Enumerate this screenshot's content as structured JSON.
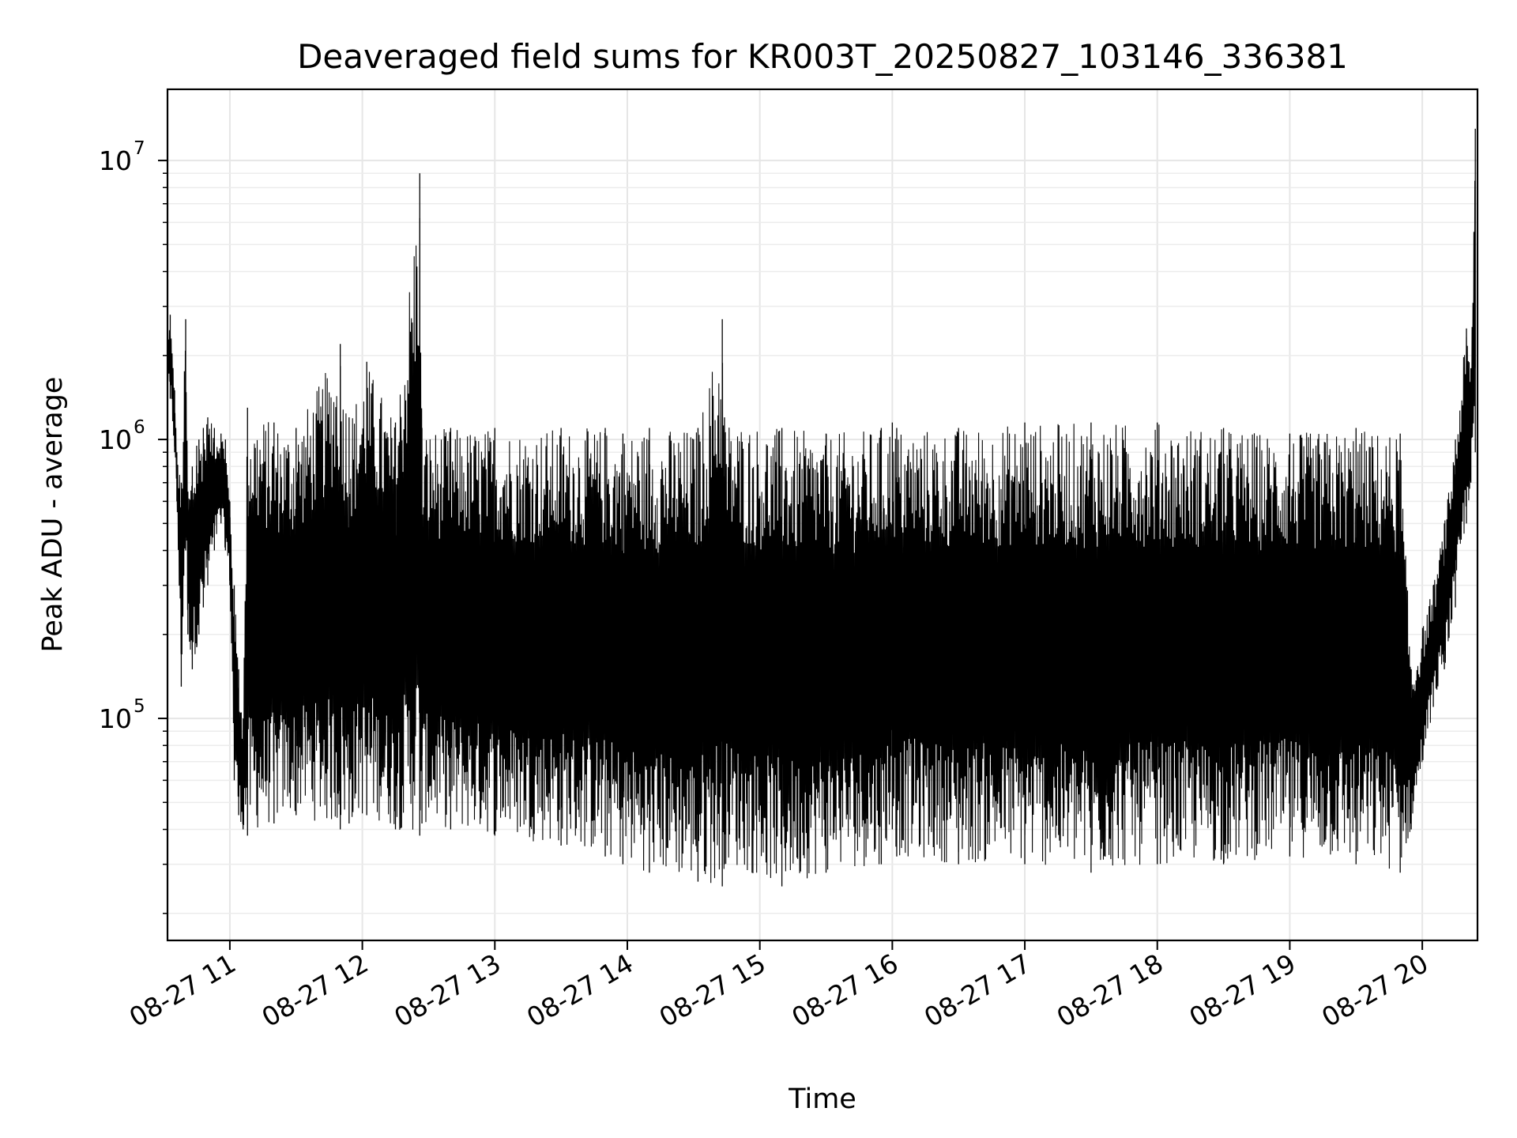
{
  "chart_data": {
    "type": "line",
    "title": "Deaveraged field sums for KR003T_20250827_103146_336381",
    "xlabel": "Time",
    "ylabel": "Peak ADU - average",
    "yscale": "log",
    "ylim": [
      16000,
      18000000
    ],
    "xlim": [
      "2025-08-27 10:31:46",
      "2025-08-27 20:25:00"
    ],
    "x_ticks": [
      "08-27 11",
      "08-27 12",
      "08-27 13",
      "08-27 14",
      "08-27 15",
      "08-27 16",
      "08-27 17",
      "08-27 18",
      "08-27 19",
      "08-27 20"
    ],
    "y_ticks": [
      {
        "base": "10",
        "exp": "5"
      },
      {
        "base": "10",
        "exp": "6"
      },
      {
        "base": "10",
        "exp": "7"
      }
    ],
    "grid": true,
    "line_color": "#000000",
    "series": [
      {
        "x": [
          "2025-08-27 10:31:46",
          "2025-08-27 10:33:00",
          "2025-08-27 10:35:00",
          "2025-08-27 10:36:00",
          "2025-08-27 10:38:00",
          "2025-08-27 10:40:00",
          "2025-08-27 10:41:00",
          "2025-08-27 10:43:00",
          "2025-08-27 10:45:00",
          "2025-08-27 10:46:00",
          "2025-08-27 10:48:00",
          "2025-08-27 10:50:00",
          "2025-08-27 10:53:00",
          "2025-08-27 10:56:00",
          "2025-08-27 10:58:00",
          "2025-08-27 11:00:00",
          "2025-08-27 11:02:00",
          "2025-08-27 11:04:00",
          "2025-08-27 11:06:00",
          "2025-08-27 11:08:00",
          "2025-08-27 11:20:00",
          "2025-08-27 11:30:00",
          "2025-08-27 11:50:00",
          "2025-08-27 11:54:00",
          "2025-08-27 12:02:00",
          "2025-08-27 12:15:00",
          "2025-08-27 12:26:00",
          "2025-08-27 12:27:00",
          "2025-08-27 12:40:00",
          "2025-08-27 13:00:00",
          "2025-08-27 13:30:00",
          "2025-08-27 13:50:00",
          "2025-08-27 13:58:00",
          "2025-08-27 14:10:00",
          "2025-08-27 14:32:00",
          "2025-08-27 14:43:00",
          "2025-08-27 14:44:00",
          "2025-08-27 15:10:00",
          "2025-08-27 15:30:00",
          "2025-08-27 15:55:00",
          "2025-08-27 16:00:00",
          "2025-08-27 16:02:00",
          "2025-08-27 16:30:00",
          "2025-08-27 17:00:00",
          "2025-08-27 17:30:00",
          "2025-08-27 18:00:00",
          "2025-08-27 18:30:00",
          "2025-08-27 19:00:00",
          "2025-08-27 19:30:00",
          "2025-08-27 19:50:00",
          "2025-08-27 19:55:00",
          "2025-08-27 20:05:00",
          "2025-08-27 20:10:00",
          "2025-08-27 20:15:00",
          "2025-08-27 20:20:00",
          "2025-08-27 20:22:00",
          "2025-08-27 20:24:00"
        ],
        "high": [
          2200000,
          2800000,
          1500000,
          900000,
          700000,
          2700000,
          650000,
          800000,
          950000,
          1000000,
          1100000,
          1200000,
          1100000,
          1050000,
          1000000,
          600000,
          300000,
          150000,
          100000,
          1300000,
          1150000,
          1100000,
          2200000,
          1200000,
          1900000,
          1150000,
          9000000,
          1100000,
          1100000,
          1100000,
          1100000,
          1100000,
          1050000,
          1100000,
          1100000,
          2700000,
          1200000,
          1100000,
          1050000,
          1100000,
          1150000,
          1100000,
          1100000,
          1150000,
          1150000,
          1150000,
          1100000,
          1050000,
          1100000,
          1050000,
          150000,
          300000,
          500000,
          1000000,
          2500000,
          1800000,
          13000000
        ],
        "low": [
          1600000,
          1400000,
          900000,
          600000,
          130000,
          400000,
          200000,
          150000,
          180000,
          200000,
          250000,
          300000,
          400000,
          500000,
          400000,
          300000,
          60000,
          45000,
          40000,
          38000,
          42000,
          45000,
          40000,
          42000,
          45000,
          40000,
          38000,
          42000,
          40000,
          38000,
          35000,
          32000,
          30000,
          28000,
          26000,
          25000,
          30000,
          25000,
          28000,
          30000,
          40000,
          32000,
          30000,
          30000,
          28000,
          30000,
          30000,
          32000,
          30000,
          28000,
          40000,
          110000,
          150000,
          250000,
          500000,
          700000,
          900000
        ]
      }
    ]
  }
}
